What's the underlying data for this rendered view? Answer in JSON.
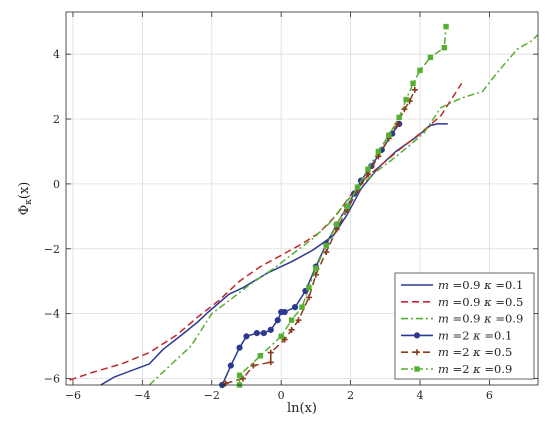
{
  "chart_data": {
    "type": "line",
    "title": "",
    "xlabel": "ln(x)",
    "ylabel": "Φ_κ(x)",
    "xlim": [
      -6.2,
      7.4
    ],
    "ylim": [
      -6.2,
      5.3
    ],
    "x_ticks": [
      -6,
      -4,
      -2,
      0,
      2,
      4,
      6
    ],
    "y_ticks": [
      -6,
      -4,
      -2,
      0,
      2,
      4
    ],
    "grid": true,
    "legend_position": "bottom-right",
    "series": [
      {
        "name": "m =0.9 κ =0.1",
        "color": "#2b3990",
        "style": "solid",
        "marker": "none",
        "points": [
          [
            -5.2,
            -6.2
          ],
          [
            -4.8,
            -5.95
          ],
          [
            -3.8,
            -5.55
          ],
          [
            -3.4,
            -5.1
          ],
          [
            -2.8,
            -4.6
          ],
          [
            -2.4,
            -4.25
          ],
          [
            -2.1,
            -3.95
          ],
          [
            -1.5,
            -3.4
          ],
          [
            -1.1,
            -3.2
          ],
          [
            -0.4,
            -2.75
          ],
          [
            0.3,
            -2.4
          ],
          [
            0.9,
            -2.05
          ],
          [
            1.5,
            -1.6
          ],
          [
            1.9,
            -0.95
          ],
          [
            2.3,
            -0.15
          ],
          [
            2.8,
            0.5
          ],
          [
            3.3,
            1.0
          ],
          [
            3.9,
            1.45
          ],
          [
            4.3,
            1.8
          ],
          [
            4.5,
            1.85
          ],
          [
            4.8,
            1.85
          ]
        ]
      },
      {
        "name": "m =0.9 κ =0.5",
        "color": "#c1272d",
        "style": "dashed",
        "marker": "none",
        "points": [
          [
            -6.1,
            -6.05
          ],
          [
            -5.4,
            -5.8
          ],
          [
            -4.6,
            -5.55
          ],
          [
            -3.8,
            -5.2
          ],
          [
            -3.0,
            -4.65
          ],
          [
            -2.4,
            -4.1
          ],
          [
            -1.8,
            -3.6
          ],
          [
            -1.2,
            -3.0
          ],
          [
            -0.6,
            -2.55
          ],
          [
            0.0,
            -2.2
          ],
          [
            0.6,
            -1.85
          ],
          [
            1.1,
            -1.5
          ],
          [
            1.6,
            -0.95
          ],
          [
            2.0,
            -0.35
          ],
          [
            2.4,
            0.15
          ],
          [
            2.9,
            0.6
          ],
          [
            3.4,
            1.05
          ],
          [
            4.0,
            1.55
          ],
          [
            4.6,
            2.1
          ],
          [
            5.2,
            3.1
          ]
        ]
      },
      {
        "name": "m =0.9 κ =0.9",
        "color": "#56b030",
        "style": "dashdot",
        "marker": "none",
        "points": [
          [
            -3.8,
            -6.2
          ],
          [
            -3.2,
            -5.6
          ],
          [
            -2.6,
            -5.0
          ],
          [
            -2.3,
            -4.5
          ],
          [
            -2.0,
            -4.0
          ],
          [
            -1.5,
            -3.6
          ],
          [
            -0.9,
            -3.1
          ],
          [
            -0.2,
            -2.6
          ],
          [
            0.4,
            -2.1
          ],
          [
            0.9,
            -1.7
          ],
          [
            1.4,
            -1.2
          ],
          [
            1.8,
            -0.65
          ],
          [
            2.2,
            -0.15
          ],
          [
            2.7,
            0.35
          ],
          [
            3.2,
            0.75
          ],
          [
            3.6,
            1.1
          ],
          [
            4.1,
            1.55
          ],
          [
            4.6,
            2.35
          ],
          [
            5.2,
            2.65
          ],
          [
            5.8,
            2.85
          ],
          [
            6.2,
            3.4
          ],
          [
            6.8,
            4.15
          ],
          [
            7.2,
            4.4
          ],
          [
            7.4,
            4.6
          ]
        ]
      },
      {
        "name": "m =2 κ =0.1",
        "color": "#2b3990",
        "style": "solid",
        "marker": "circle",
        "points": [
          [
            -1.7,
            -6.2
          ],
          [
            -1.45,
            -5.6
          ],
          [
            -1.2,
            -5.05
          ],
          [
            -1.0,
            -4.7
          ],
          [
            -0.7,
            -4.6
          ],
          [
            -0.5,
            -4.6
          ],
          [
            -0.3,
            -4.5
          ],
          [
            -0.1,
            -4.2
          ],
          [
            0.0,
            -3.95
          ],
          [
            0.1,
            -3.95
          ],
          [
            0.4,
            -3.8
          ],
          [
            0.7,
            -3.3
          ],
          [
            1.0,
            -2.55
          ],
          [
            1.3,
            -1.85
          ],
          [
            1.6,
            -1.25
          ],
          [
            1.9,
            -0.7
          ],
          [
            2.1,
            -0.3
          ],
          [
            2.3,
            0.1
          ],
          [
            2.6,
            0.55
          ],
          [
            2.9,
            1.05
          ],
          [
            3.2,
            1.55
          ],
          [
            3.4,
            1.85
          ]
        ]
      },
      {
        "name": "m =2 κ =0.5",
        "color": "#8b3a1a",
        "style": "dashed",
        "marker": "plus",
        "points": [
          [
            -1.6,
            -6.15
          ],
          [
            -1.1,
            -6.0
          ],
          [
            -0.8,
            -5.6
          ],
          [
            -0.3,
            -5.5
          ],
          [
            -0.3,
            -5.2
          ],
          [
            0.1,
            -4.8
          ],
          [
            0.3,
            -4.5
          ],
          [
            0.5,
            -4.2
          ],
          [
            0.8,
            -3.5
          ],
          [
            1.0,
            -2.8
          ],
          [
            1.3,
            -2.1
          ],
          [
            1.6,
            -1.4
          ],
          [
            1.9,
            -0.8
          ],
          [
            2.2,
            -0.2
          ],
          [
            2.5,
            0.3
          ],
          [
            2.8,
            0.85
          ],
          [
            3.1,
            1.4
          ],
          [
            3.35,
            1.85
          ],
          [
            3.55,
            2.3
          ],
          [
            3.7,
            2.55
          ],
          [
            3.85,
            2.9
          ]
        ]
      },
      {
        "name": "m =2 κ =0.9",
        "color": "#56b030",
        "style": "dashdot",
        "marker": "square",
        "points": [
          [
            -1.2,
            -6.2
          ],
          [
            -1.2,
            -5.9
          ],
          [
            -0.6,
            -5.3
          ],
          [
            0.0,
            -4.7
          ],
          [
            0.3,
            -4.2
          ],
          [
            0.6,
            -3.8
          ],
          [
            0.8,
            -3.2
          ],
          [
            1.0,
            -2.6
          ],
          [
            1.3,
            -1.9
          ],
          [
            1.6,
            -1.25
          ],
          [
            1.9,
            -0.7
          ],
          [
            2.2,
            -0.1
          ],
          [
            2.5,
            0.45
          ],
          [
            2.8,
            1.0
          ],
          [
            3.1,
            1.5
          ],
          [
            3.4,
            2.05
          ],
          [
            3.6,
            2.6
          ],
          [
            3.8,
            3.1
          ],
          [
            4.0,
            3.5
          ],
          [
            4.3,
            3.9
          ],
          [
            4.7,
            4.2
          ],
          [
            4.75,
            4.85
          ]
        ]
      }
    ]
  }
}
